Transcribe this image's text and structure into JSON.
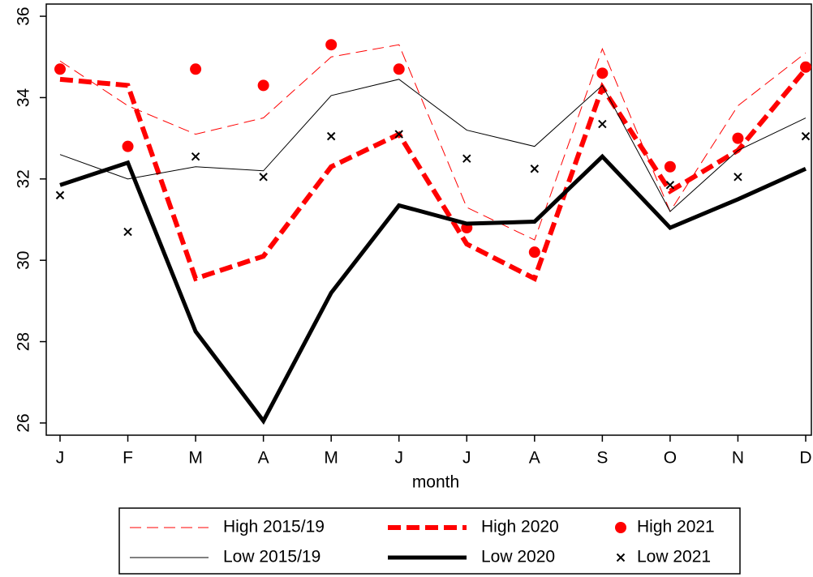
{
  "chart_data": {
    "type": "line",
    "x_label": "month",
    "categories": [
      "J",
      "F",
      "M",
      "A",
      "M",
      "J",
      "J",
      "A",
      "S",
      "O",
      "N",
      "D"
    ],
    "ylim": [
      25.7,
      36.3
    ],
    "yticks": [
      26,
      28,
      30,
      32,
      34,
      36
    ],
    "grid": false,
    "legend": "bottom",
    "series": [
      {
        "name": "High 2015/19",
        "color": "#ff0000",
        "style": "thin-dashed",
        "values": [
          34.9,
          33.8,
          33.1,
          33.5,
          35.0,
          35.3,
          31.3,
          30.5,
          35.2,
          31.2,
          33.8,
          35.1
        ]
      },
      {
        "name": "High 2020",
        "color": "#ff0000",
        "style": "thick-dashed",
        "values": [
          34.45,
          34.3,
          29.55,
          30.1,
          32.3,
          33.1,
          30.4,
          29.55,
          34.25,
          31.7,
          32.7,
          34.7
        ]
      },
      {
        "name": "High 2021",
        "color": "#ff0000",
        "style": "dot",
        "values": [
          34.7,
          32.8,
          34.7,
          34.3,
          35.3,
          34.7,
          30.8,
          30.2,
          34.6,
          32.3,
          33.0,
          34.75
        ]
      },
      {
        "name": "Low 2015/19",
        "color": "#000000",
        "style": "thin",
        "values": [
          32.6,
          32.0,
          32.3,
          32.2,
          34.05,
          34.45,
          33.2,
          32.8,
          34.3,
          31.2,
          32.7,
          33.5
        ]
      },
      {
        "name": "Low 2020",
        "color": "#000000",
        "style": "thick",
        "values": [
          31.85,
          32.4,
          28.25,
          26.05,
          29.2,
          31.35,
          30.9,
          30.95,
          32.55,
          30.8,
          31.5,
          32.25
        ]
      },
      {
        "name": "Low 2021",
        "color": "#000000",
        "style": "cross",
        "values": [
          31.6,
          30.7,
          32.55,
          32.05,
          33.05,
          33.1,
          32.5,
          32.25,
          33.35,
          31.85,
          32.05,
          33.05
        ]
      }
    ]
  }
}
